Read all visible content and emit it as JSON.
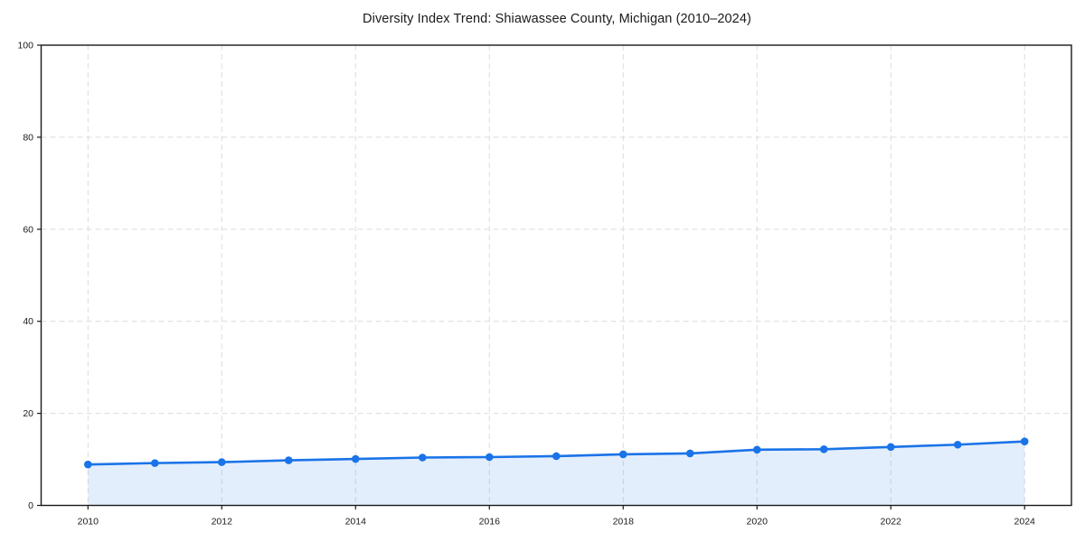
{
  "chart_data": {
    "type": "area",
    "title": "Diversity Index Trend: Shiawassee County, Michigan (2010–2024)",
    "x": [
      2010,
      2011,
      2012,
      2013,
      2014,
      2015,
      2016,
      2017,
      2018,
      2019,
      2020,
      2021,
      2022,
      2023,
      2024
    ],
    "series": [
      {
        "name": "Diversity Index",
        "values": [
          8.9,
          9.2,
          9.4,
          9.8,
          10.1,
          10.4,
          10.5,
          10.7,
          11.1,
          11.3,
          12.1,
          12.2,
          12.7,
          13.2,
          13.9
        ]
      }
    ],
    "xlabel": "",
    "ylabel": "",
    "xlim": [
      2009.3,
      2024.7
    ],
    "ylim": [
      0,
      100
    ],
    "xticks": [
      2010,
      2012,
      2014,
      2016,
      2018,
      2020,
      2022,
      2024
    ],
    "yticks": [
      0,
      20,
      40,
      60,
      80,
      100
    ],
    "grid": true,
    "grid_style": "dashed",
    "legend": false,
    "marker": "circle",
    "marker_radius": 4.3,
    "line_width": 2.6,
    "colors": {
      "line": "#1a73e8",
      "fill": "#1a73e8",
      "fill_opacity": 0.12,
      "grid": "#dcdcdc",
      "axis": "#1a1a1a",
      "tick_text": "#1a1a1a",
      "background": "#ffffff"
    }
  }
}
